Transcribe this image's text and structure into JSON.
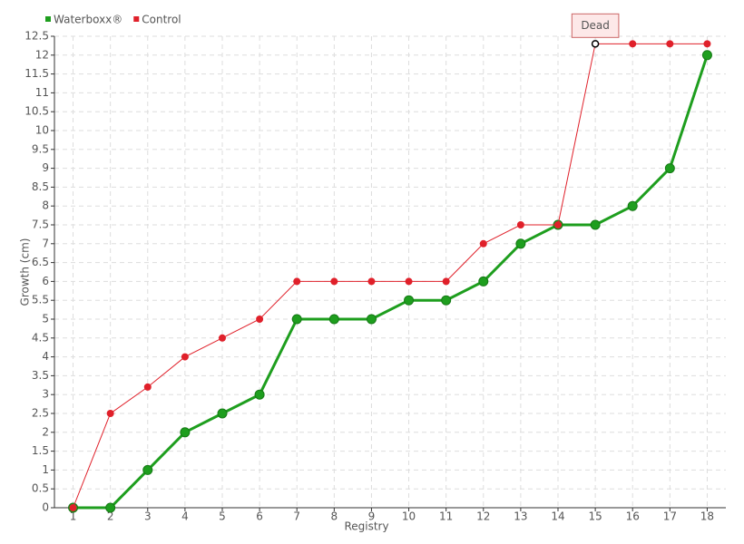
{
  "chart_data": {
    "type": "line",
    "x": [
      1,
      2,
      3,
      4,
      5,
      6,
      7,
      8,
      9,
      10,
      11,
      12,
      13,
      14,
      15,
      16,
      17,
      18
    ],
    "series": [
      {
        "name": "Waterboxx®",
        "color": "#1e9e1e",
        "values": [
          0,
          0,
          1,
          2,
          2.5,
          3,
          5,
          5,
          5,
          5.5,
          5.5,
          6,
          7,
          7.5,
          7.5,
          8,
          9,
          12
        ]
      },
      {
        "name": "Control",
        "color": "#e0202a",
        "values": [
          0,
          2.5,
          3.2,
          4,
          4.5,
          5,
          6,
          6,
          6,
          6,
          6,
          7,
          7.5,
          7.5,
          12.3,
          12.3,
          12.3,
          12.3
        ]
      }
    ],
    "xlabel": "Registry",
    "ylabel": "Growth (cm)",
    "xlim": [
      0.5,
      18.5
    ],
    "xticks": [
      1,
      2,
      3,
      4,
      5,
      6,
      7,
      8,
      9,
      10,
      11,
      12,
      13,
      14,
      15,
      16,
      17,
      18
    ],
    "ylim": [
      0,
      12.5
    ],
    "yticks": [
      0,
      0.5,
      1,
      1.5,
      2,
      2.5,
      3,
      3.5,
      4,
      4.5,
      5,
      5.5,
      6,
      6.5,
      7,
      7.5,
      8,
      8.5,
      9,
      9.5,
      10,
      10.5,
      11,
      11.5,
      12,
      12.5
    ],
    "grid": true,
    "legend": "top-left",
    "annotations": [
      {
        "text": "Dead",
        "x": 15,
        "y": 12.3
      }
    ]
  }
}
